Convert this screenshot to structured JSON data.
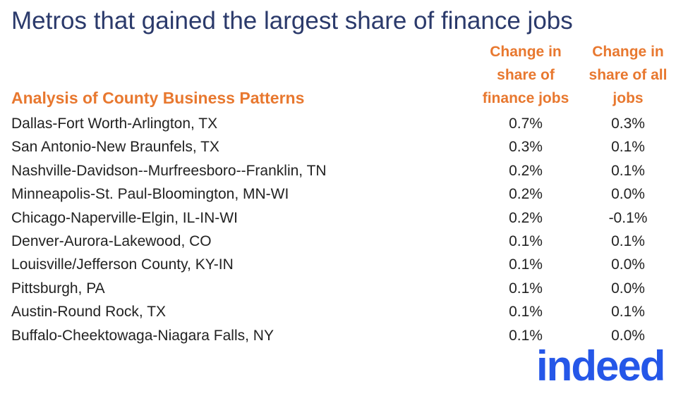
{
  "header": {
    "title": "Metros that gained the largest share of finance jobs",
    "subtitle": "Analysis of County Business Patterns"
  },
  "table": {
    "columns": [
      [
        "Change in",
        "share of",
        "finance jobs"
      ],
      [
        "Change in",
        "share of all",
        "jobs"
      ]
    ],
    "rows": [
      [
        "Dallas-Fort Worth-Arlington, TX",
        "0.7%",
        "0.3%"
      ],
      [
        "San Antonio-New Braunfels, TX",
        "0.3%",
        "0.1%"
      ],
      [
        "Nashville-Davidson--Murfreesboro--Franklin, TN",
        "0.2%",
        "0.1%"
      ],
      [
        "Minneapolis-St. Paul-Bloomington, MN-WI",
        "0.2%",
        "0.0%"
      ],
      [
        "Chicago-Naperville-Elgin, IL-IN-WI",
        "0.2%",
        "-0.1%"
      ],
      [
        "Denver-Aurora-Lakewood, CO",
        "0.1%",
        "0.1%"
      ],
      [
        "Louisville/Jefferson County, KY-IN",
        "0.1%",
        "0.0%"
      ],
      [
        "Pittsburgh, PA",
        "0.1%",
        "0.0%"
      ],
      [
        "Austin-Round Rock, TX",
        "0.1%",
        "0.1%"
      ],
      [
        "Buffalo-Cheektowaga-Niagara Falls, NY",
        "0.1%",
        "0.0%"
      ]
    ]
  },
  "logo": {
    "text": "indeed"
  }
}
